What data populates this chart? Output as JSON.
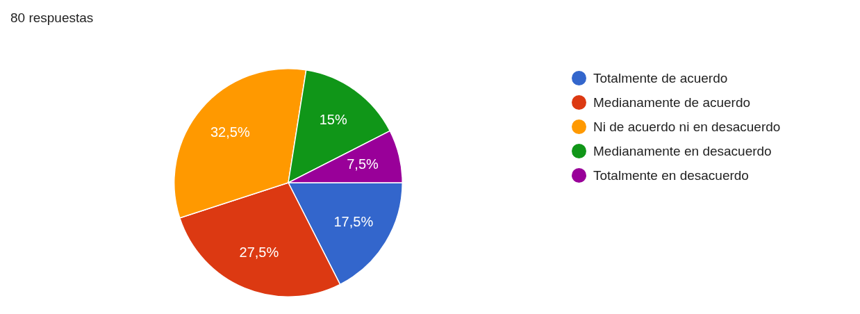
{
  "chart_data": {
    "type": "pie",
    "title": "80 respuestas",
    "categories": [
      "Totalmente de acuerdo",
      "Medianamente de acuerdo",
      "Ni de acuerdo ni en desacuerdo",
      "Medianamente en desacuerdo",
      "Totalmente en desacuerdo"
    ],
    "values": [
      17.5,
      27.5,
      32.5,
      15,
      7.5
    ],
    "colors": [
      "#3366cc",
      "#dc3912",
      "#ff9900",
      "#109618",
      "#990099"
    ],
    "value_labels": [
      "17,5%",
      "27,5%",
      "32,5%",
      "15%",
      "7,5%"
    ],
    "legend": "right"
  }
}
